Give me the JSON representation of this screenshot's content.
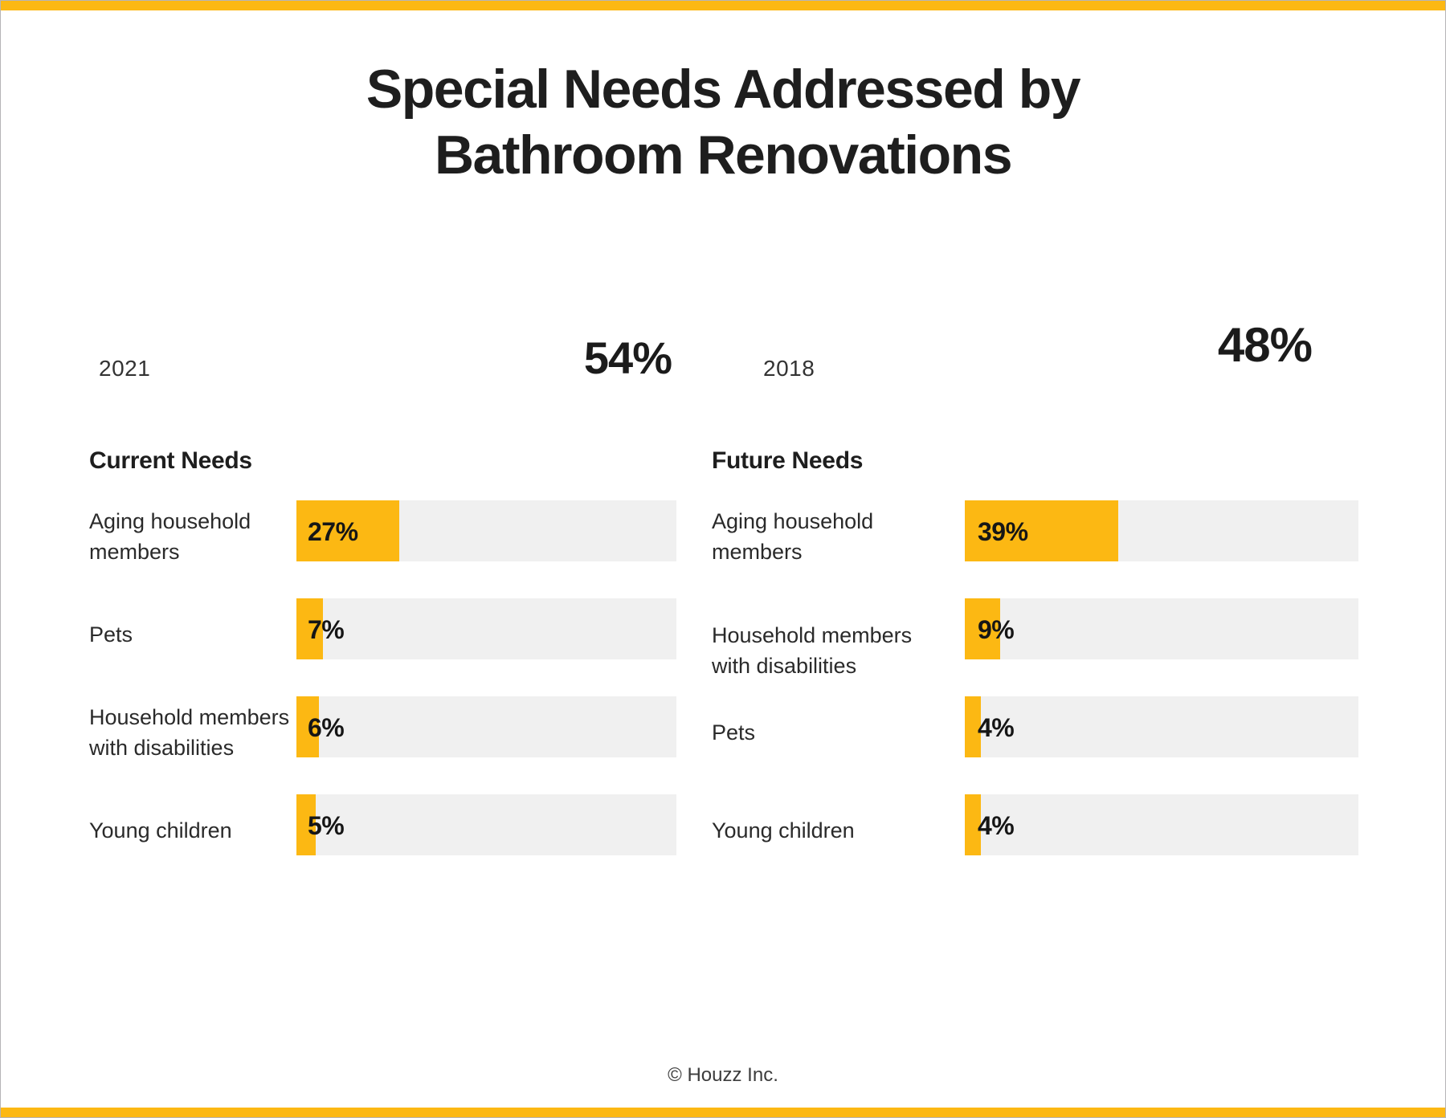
{
  "page": {
    "title_line1": "Special Needs Addressed by",
    "title_line2": "Bathroom Renovations",
    "footer": "© Houzz Inc.",
    "accent_color": "#FCB813",
    "track_color": "#F0F0F0",
    "text_color": "#1E1E1E",
    "border_color": "#B6B4B7"
  },
  "chart_data": [
    {
      "type": "bar",
      "orientation": "horizontal",
      "year": "2021",
      "headline_value": "54%",
      "section_title": "Current Needs",
      "categories": [
        "Aging household members",
        "Pets",
        "Household members with disabilities",
        "Young children"
      ],
      "values": [
        27,
        7,
        6,
        5
      ],
      "value_labels": [
        "27%",
        "7%",
        "6%",
        "5%"
      ],
      "xlim": [
        0,
        100
      ],
      "grid": false,
      "bar_color": "#FCB813",
      "track_color": "#F0F0F0"
    },
    {
      "type": "bar",
      "orientation": "horizontal",
      "year": "2018",
      "headline_value": "48%",
      "section_title": "Future Needs",
      "categories": [
        "Aging household members",
        "Household members with disabilities",
        "Pets",
        "Young children"
      ],
      "values": [
        39,
        9,
        4,
        4
      ],
      "value_labels": [
        "39%",
        "9%",
        "4%",
        "4%"
      ],
      "xlim": [
        0,
        100
      ],
      "grid": false,
      "bar_color": "#FCB813",
      "track_color": "#F0F0F0"
    }
  ]
}
